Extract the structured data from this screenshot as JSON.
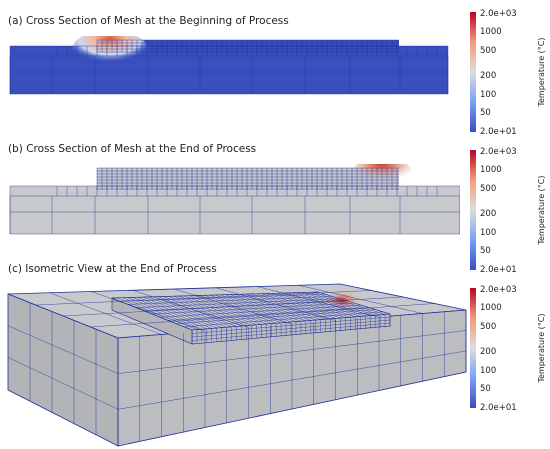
{
  "panels": [
    {
      "title": "(a) Cross Section of Mesh at the Beginning of Process"
    },
    {
      "title": "(b) Cross Section of Mesh at the End of Process"
    },
    {
      "title": "(c) Isometric View at the End of Process"
    }
  ],
  "colorbar": {
    "label": "Temperature (°C)",
    "max_label": "2.0e+03",
    "min_label": "2.0e+01",
    "ticks": [
      "1000",
      "500",
      "200",
      "100",
      "50"
    ],
    "scale": "log",
    "range": [
      20,
      2000
    ],
    "colors": {
      "low": "#3b4cc0",
      "mid": "#dddddd",
      "high": "#b40426"
    }
  },
  "colors": {
    "cold": "#3a4fbd",
    "gray_part": "#c8c9cc",
    "mesh_line": "#1c2c9c"
  }
}
